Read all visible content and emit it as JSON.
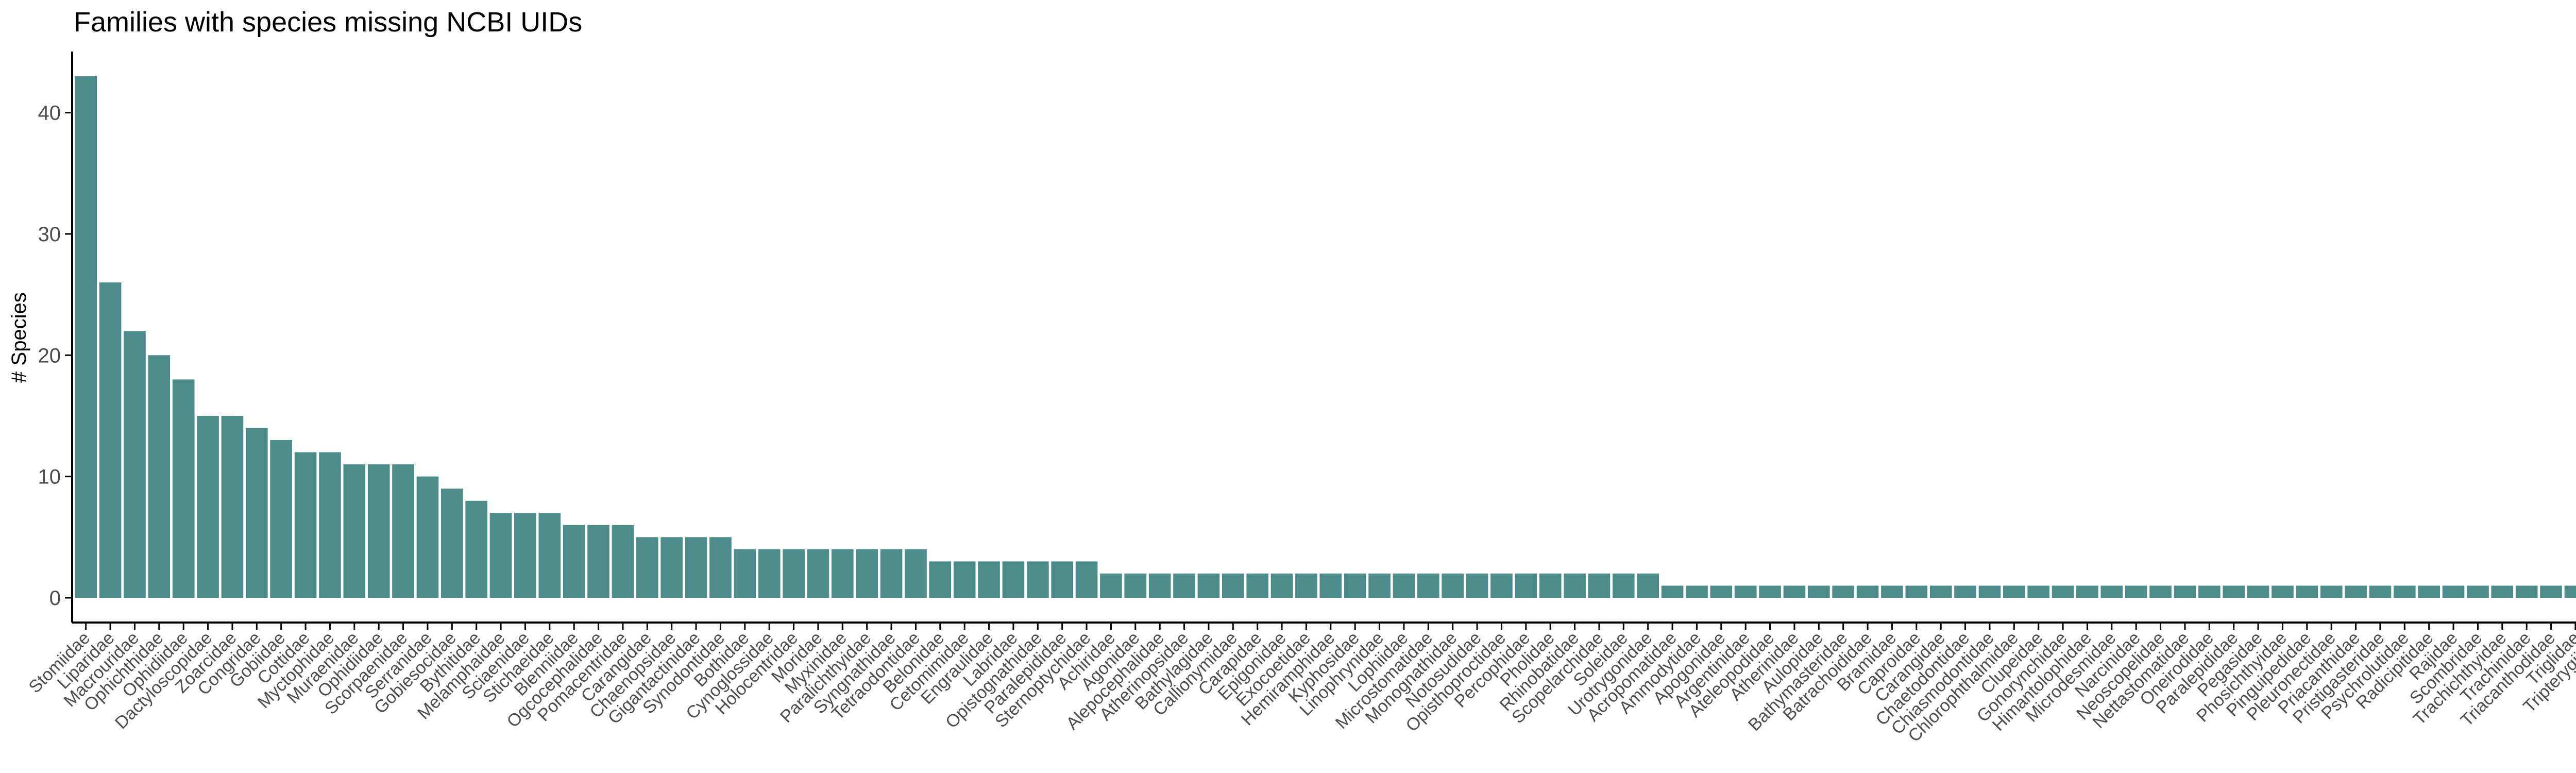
{
  "chart_data": {
    "type": "bar",
    "title": "Families with species missing NCBI UIDs",
    "xlabel": "",
    "ylabel": "# Species",
    "ylim": [
      0,
      45
    ],
    "yticks": [
      0,
      10,
      20,
      30,
      40
    ],
    "grid": false,
    "bar_color": "#4d8c8a",
    "categories": [
      "Stomiidae",
      "Liparidae",
      "Macrouridae",
      "Ophichthidae",
      "Ophidiidae",
      "Dactyloscopidae",
      "Zoarcidae",
      "Congridae",
      "Gobiidae",
      "Cottidae",
      "Myctophidae",
      "Muraenidae",
      "Ophidiidae",
      "Scorpaenidae",
      "Serranidae",
      "Gobiesocidae",
      "Bythitidae",
      "Melamphaidae",
      "Sciaenidae",
      "Stichaeidae",
      "Blenniidae",
      "Ogcocephalidae",
      "Pomacentridae",
      "Carangidae",
      "Chaenopsidae",
      "Gigantactinidae",
      "Synodontidae",
      "Bothidae",
      "Cynoglossidae",
      "Holocentridae",
      "Moridae",
      "Myxinidae",
      "Paralichthyidae",
      "Syngnathidae",
      "Tetraodontidae",
      "Belonidae",
      "Cetomimidae",
      "Engraulidae",
      "Labridae",
      "Opistognathidae",
      "Paralepididae",
      "Sternoptychidae",
      "Achiridae",
      "Agonidae",
      "Alepocephalidae",
      "Atherinopsidae",
      "Bathylagidae",
      "Callionymidae",
      "Carapidae",
      "Epigonidae",
      "Exocoetidae",
      "Hemiramphidae",
      "Kyphosidae",
      "Linophrynidae",
      "Lophiidae",
      "Microstomatidae",
      "Monognathidae",
      "Notosudidae",
      "Opisthoproctidae",
      "Percophidae",
      "Pholidae",
      "Rhinobatidae",
      "Scopelarchidae",
      "Soleidae",
      "Urotrygonidae",
      "Acropomatidae",
      "Ammodytidae",
      "Apogonidae",
      "Argentinidae",
      "Ateleopodidae",
      "Atherinidae",
      "Aulopidae",
      "Bathymasteridae",
      "Batrachoididae",
      "Bramidae",
      "Caproidae",
      "Carangidae",
      "Chaetodontidae",
      "Chiasmodontidae",
      "Chlorophthalmidae",
      "Clupeidae",
      "Gonorynchidae",
      "Himantolophidae",
      "Microdesmidae",
      "Narcinidae",
      "Neoscopelidae",
      "Nettastomatidae",
      "Oneirodidae",
      "Paralepididae",
      "Pegasidae",
      "Phosichthyidae",
      "Pinguipedidae",
      "Pleuronectidae",
      "Priacanthidae",
      "Pristigasteridae",
      "Psychrolutidae",
      "Radicipitidae",
      "Rajidae",
      "Scombridae",
      "Trachichthyidae",
      "Trachinidae",
      "Triacanthodidae",
      "Triglidae",
      "Tripterygiidae"
    ],
    "values": [
      43,
      26,
      22,
      20,
      18,
      15,
      15,
      14,
      13,
      12,
      12,
      11,
      11,
      11,
      10,
      9,
      8,
      7,
      7,
      7,
      6,
      6,
      6,
      5,
      5,
      5,
      5,
      4,
      4,
      4,
      4,
      4,
      4,
      4,
      4,
      3,
      3,
      3,
      3,
      3,
      3,
      3,
      2,
      2,
      2,
      2,
      2,
      2,
      2,
      2,
      2,
      2,
      2,
      2,
      2,
      2,
      2,
      2,
      2,
      2,
      2,
      2,
      2,
      2,
      2,
      1,
      1,
      1,
      1,
      1,
      1,
      1,
      1,
      1,
      1,
      1,
      1,
      1,
      1,
      1,
      1,
      1,
      1,
      1,
      1,
      1,
      1,
      1,
      1,
      1,
      1,
      1,
      1,
      1,
      1,
      1,
      1,
      1,
      1,
      1,
      1,
      1,
      1,
      1
    ]
  }
}
